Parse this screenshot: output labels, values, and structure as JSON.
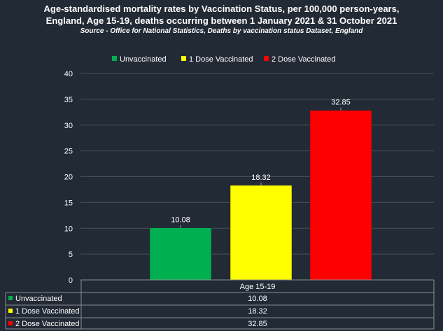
{
  "chart_data": {
    "type": "bar",
    "title_lines": [
      "Age-standardised mortality rates by Vaccination Status, per 100,000 person-years,",
      "England, Age 15-19, deaths occurring between 1 January 2021 & 31 October 2021"
    ],
    "source": "Source - Office for National Statistics, Deaths by vaccination status Dataset, England",
    "categories": [
      "Age 15-19"
    ],
    "series": [
      {
        "name": "Unvaccinated",
        "values": [
          10.08
        ],
        "color": "#00b050",
        "value_label": "10.08"
      },
      {
        "name": "1 Dose Vaccinated",
        "values": [
          18.32
        ],
        "color": "#ffff00",
        "value_label": "18.32"
      },
      {
        "name": "2 Dose Vaccinated",
        "values": [
          32.85
        ],
        "color": "#ff0000",
        "value_label": "32.85"
      }
    ],
    "ylim": [
      0,
      40
    ],
    "yticks": [
      0,
      5,
      10,
      15,
      20,
      25,
      30,
      35,
      40
    ],
    "grid": true,
    "legend_position": "top",
    "data_table": true
  }
}
